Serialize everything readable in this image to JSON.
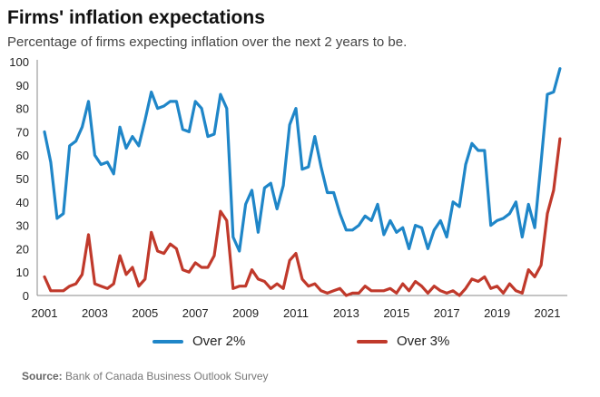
{
  "chart_data": {
    "type": "line",
    "title": "Firms' inflation expectations",
    "subtitle": "Percentage  of firms expecting  inflation over the next 2 years to be.",
    "xlabel": "",
    "ylabel": "",
    "ylim": [
      0,
      100
    ],
    "yticks": [
      0,
      10,
      20,
      30,
      40,
      50,
      60,
      70,
      80,
      90,
      100
    ],
    "xticks": [
      "2001",
      "2003",
      "2005",
      "2007",
      "2009",
      "2011",
      "2013",
      "2015",
      "2017",
      "2019",
      "2021"
    ],
    "x_start": "2001Q1",
    "frequency": "quarterly",
    "grid": false,
    "legend_position": "bottom",
    "series": [
      {
        "name": "Over 2%",
        "color": "#1f86c8",
        "values": [
          70,
          57,
          33,
          35,
          64,
          66,
          72,
          83,
          60,
          56,
          57,
          52,
          72,
          63,
          68,
          64,
          75,
          87,
          80,
          81,
          83,
          83,
          71,
          70,
          83,
          80,
          68,
          69,
          86,
          80,
          25,
          19,
          39,
          45,
          27,
          46,
          48,
          37,
          47,
          73,
          80,
          54,
          55,
          68,
          55,
          44,
          44,
          35,
          28,
          28,
          30,
          34,
          32,
          39,
          26,
          32,
          27,
          29,
          20,
          30,
          29,
          20,
          28,
          32,
          25,
          40,
          38,
          56,
          65,
          62,
          62,
          30,
          32,
          33,
          35,
          40,
          25,
          39,
          29,
          57,
          86,
          87,
          97
        ]
      },
      {
        "name": "Over 3%",
        "color": "#c0392b",
        "values": [
          8,
          2,
          2,
          2,
          4,
          5,
          9,
          26,
          5,
          4,
          3,
          5,
          17,
          9,
          12,
          4,
          7,
          27,
          19,
          18,
          22,
          20,
          11,
          10,
          14,
          12,
          12,
          17,
          36,
          32,
          3,
          4,
          4,
          11,
          7,
          6,
          3,
          5,
          3,
          15,
          18,
          7,
          4,
          5,
          2,
          1,
          2,
          3,
          0,
          1,
          1,
          4,
          2,
          2,
          2,
          3,
          1,
          5,
          2,
          6,
          4,
          1,
          4,
          2,
          1,
          2,
          0,
          3,
          7,
          6,
          8,
          3,
          4,
          1,
          5,
          2,
          1,
          11,
          8,
          13,
          35,
          45,
          67
        ]
      }
    ]
  },
  "source": {
    "label": "Source:",
    "text": "Bank of Canada Business Outlook Survey"
  }
}
